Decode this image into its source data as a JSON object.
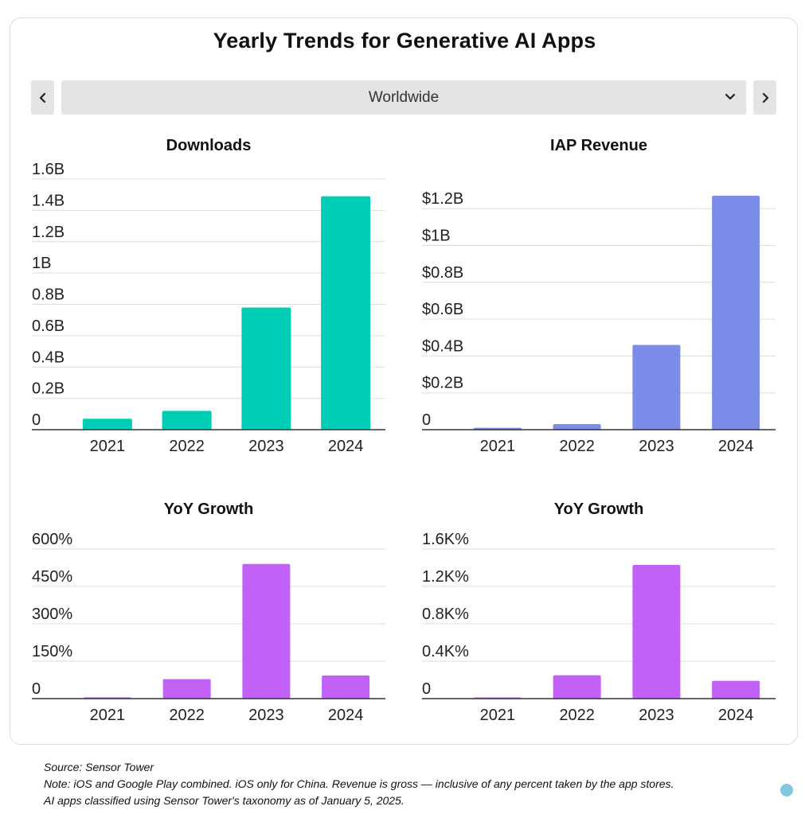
{
  "title": "Yearly Trends for Generative AI Apps",
  "region_selector": {
    "selected": "Worldwide"
  },
  "footer": {
    "source": "Source: Sensor Tower",
    "note": "Note: iOS and Google Play combined. iOS only for China. Revenue is gross — inclusive of any percent taken by the app stores.",
    "classification": "AI apps classified using Sensor Tower's taxonomy as of January 5, 2025."
  },
  "colors": {
    "downloads": "#00cdb5",
    "revenue": "#7b8ce9",
    "growth": "#c261f7"
  },
  "chart_data": [
    {
      "type": "bar",
      "title": "Downloads",
      "categories": [
        "2021",
        "2022",
        "2023",
        "2024"
      ],
      "values": [
        0.07,
        0.12,
        0.78,
        1.49
      ],
      "ylim": [
        0,
        1.6
      ],
      "yticks": [
        0,
        0.2,
        0.4,
        0.6,
        0.8,
        1,
        1.2,
        1.4,
        1.6
      ],
      "yticklabels": [
        "0",
        "0.2B",
        "0.4B",
        "0.6B",
        "0.8B",
        "1B",
        "1.2B",
        "1.4B",
        "1.6B"
      ],
      "unit": "billions",
      "grid": true,
      "color": "#00cdb5"
    },
    {
      "type": "bar",
      "title": "IAP Revenue",
      "categories": [
        "2021",
        "2022",
        "2023",
        "2024"
      ],
      "values": [
        0.01,
        0.03,
        0.46,
        1.27
      ],
      "ylim": [
        0,
        1.27
      ],
      "yticks": [
        0,
        0.2,
        0.4,
        0.6,
        0.8,
        1,
        1.2
      ],
      "yticklabels": [
        "0",
        "$0.2B",
        "$0.4B",
        "$0.6B",
        "$0.8B",
        "$1B",
        "$1.2B"
      ],
      "unit": "billions USD",
      "grid": true,
      "color": "#7b8ce9"
    },
    {
      "type": "bar",
      "title": "YoY Growth",
      "categories": [
        "2021",
        "2022",
        "2023",
        "2024"
      ],
      "values": [
        5,
        78,
        540,
        93
      ],
      "ylim": [
        0,
        600
      ],
      "yticks": [
        0,
        150,
        300,
        450,
        600
      ],
      "yticklabels": [
        "0",
        "150%",
        "300%",
        "450%",
        "600%"
      ],
      "unit": "percent",
      "grid": true,
      "color": "#c261f7"
    },
    {
      "type": "bar",
      "title": "YoY Growth",
      "categories": [
        "2021",
        "2022",
        "2023",
        "2024"
      ],
      "values": [
        10,
        250,
        1430,
        190
      ],
      "ylim": [
        0,
        1600
      ],
      "yticks": [
        0,
        400,
        800,
        1200,
        1600
      ],
      "yticklabels": [
        "0",
        "0.4K%",
        "0.8K%",
        "1.2K%",
        "1.6K%"
      ],
      "unit": "percent",
      "grid": true,
      "color": "#c261f7"
    }
  ]
}
